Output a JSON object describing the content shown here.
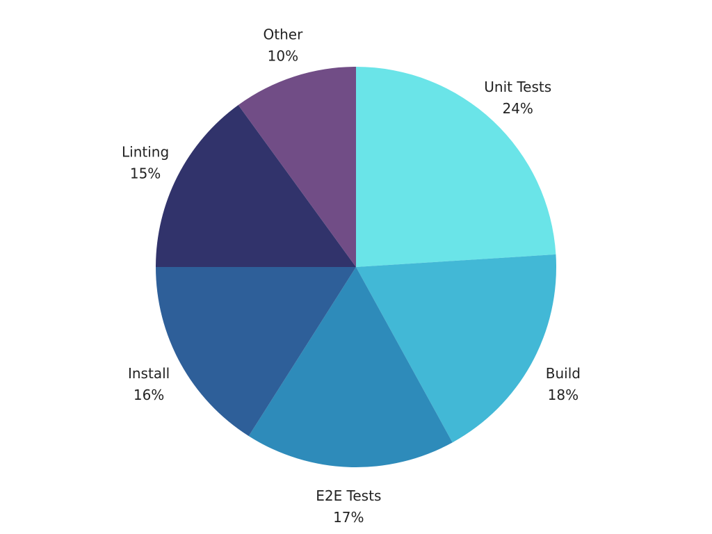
{
  "chart_data": {
    "type": "pie",
    "slices": [
      {
        "label": "Unit Tests",
        "value": 24,
        "pct_label": "24%",
        "color": "#6ae4e8"
      },
      {
        "label": "Build",
        "value": 18,
        "pct_label": "18%",
        "color": "#42b8d6"
      },
      {
        "label": "E2E Tests",
        "value": 17,
        "pct_label": "17%",
        "color": "#2e8bba"
      },
      {
        "label": "Install",
        "value": 16,
        "pct_label": "16%",
        "color": "#2e5f99"
      },
      {
        "label": "Linting",
        "value": 15,
        "pct_label": "15%",
        "color": "#31336b"
      },
      {
        "label": "Other",
        "value": 10,
        "pct_label": "10%",
        "color": "#714d86"
      }
    ],
    "start_angle_deg": 0,
    "direction": "clockwise",
    "legend": "none"
  }
}
